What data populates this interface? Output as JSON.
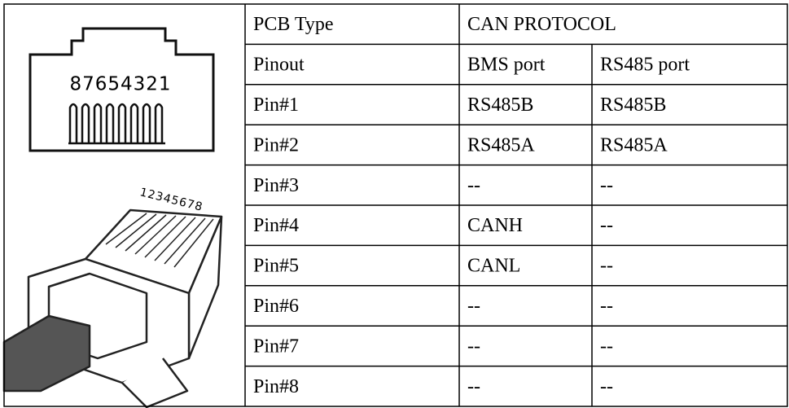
{
  "figure": {
    "socket_label": "87654321",
    "plug_label": "12345678"
  },
  "table": {
    "header": [
      "PCB Type",
      "CAN PROTOCOL"
    ],
    "rows": [
      [
        "Pinout",
        "BMS port",
        "RS485 port"
      ],
      [
        "Pin#1",
        "RS485B",
        "RS485B"
      ],
      [
        "Pin#2",
        "RS485A",
        "RS485A"
      ],
      [
        "Pin#3",
        "--",
        "--"
      ],
      [
        "Pin#4",
        "CANH",
        "--"
      ],
      [
        "Pin#5",
        "CANL",
        "--"
      ],
      [
        "Pin#6",
        "--",
        "--"
      ],
      [
        "Pin#7",
        "--",
        "--"
      ],
      [
        "Pin#8",
        "--",
        "--"
      ]
    ]
  }
}
